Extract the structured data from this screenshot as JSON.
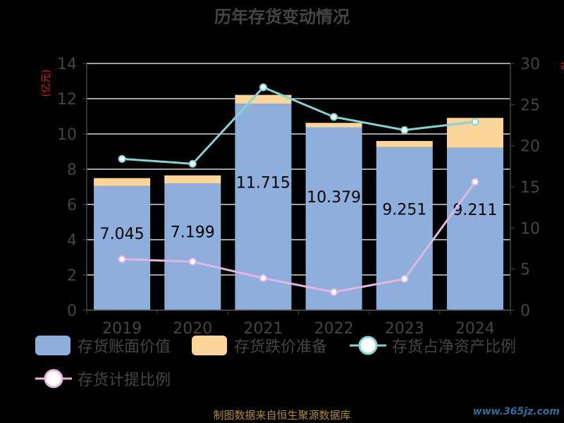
{
  "title": "历年存货变动情况",
  "colors": {
    "bar_book": "#8eaedb",
    "bar_reserve": "#fcd59b",
    "line_ratio": "#86d3d6",
    "line_provision": "#e2b6e1",
    "axis_text": "#444444",
    "title": "#444444",
    "unit_label": "#e0191b",
    "source": "#b08a3c",
    "watermark": "#2c6f9c"
  },
  "chart_data": {
    "type": "bar",
    "categories": [
      "2019",
      "2020",
      "2021",
      "2022",
      "2023",
      "2024"
    ],
    "y_left": {
      "label": "(亿元)",
      "min": 0,
      "max": 14,
      "ticks": [
        0,
        2,
        4,
        6,
        8,
        10,
        12,
        14
      ]
    },
    "y_right": {
      "label": "%",
      "min": 0,
      "max": 30,
      "ticks": [
        0,
        5,
        10,
        15,
        20,
        25,
        30
      ]
    },
    "series": [
      {
        "name": "存货账面价值",
        "type": "bar",
        "axis": "left",
        "stack": "total",
        "values": [
          7.045,
          7.199,
          11.715,
          10.379,
          9.251,
          9.211
        ],
        "labels": [
          "7.045",
          "7.199",
          "11.715",
          "10.379",
          "9.251",
          "9.211"
        ]
      },
      {
        "name": "存货跌价准备",
        "type": "bar",
        "axis": "left",
        "stack": "total",
        "values": [
          0.45,
          0.45,
          0.5,
          0.25,
          0.35,
          1.7
        ]
      },
      {
        "name": "存货占净资产比例",
        "type": "line",
        "axis": "right",
        "values": [
          18.4,
          17.8,
          27.1,
          23.5,
          21.9,
          22.9
        ]
      },
      {
        "name": "存货计提比例",
        "type": "line",
        "axis": "right",
        "values": [
          6.2,
          5.9,
          3.9,
          2.2,
          3.8,
          15.6
        ]
      }
    ],
    "legend_position": "bottom",
    "grid": true
  },
  "footer": {
    "source": "制图数据来自恒生聚源数据库",
    "watermark": "www.365jz.com"
  }
}
